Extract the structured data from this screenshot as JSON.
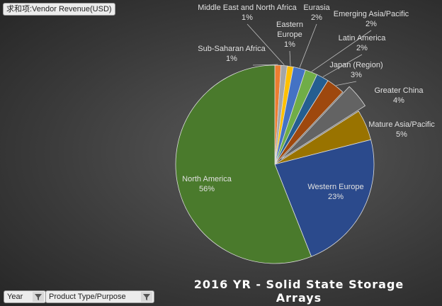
{
  "pivot_fields": {
    "value_field": "求和项:Vendor Revenue(USD)",
    "filters": [
      "Year",
      "Product Type/Purpose"
    ]
  },
  "chart_data": {
    "type": "pie",
    "title": "2016 YR - Solid State Storage Arrays",
    "categories": [
      "Sub-Saharan Africa",
      "Middle East and North Africa",
      "Eastern Europe",
      "Eurasia",
      "Emerging Asia/Pacific",
      "Latin America",
      "Japan (Region)",
      "Greater China",
      "Mature Asia/Pacific",
      "Western Europe",
      "North America"
    ],
    "values": [
      1,
      1,
      1,
      2,
      2,
      2,
      3,
      4,
      5,
      23,
      56
    ],
    "value_labels": [
      "1%",
      "1%",
      "1%",
      "2%",
      "2%",
      "2%",
      "3%",
      "4%",
      "5%",
      "23%",
      "56%"
    ],
    "colors": [
      "#ed7d31",
      "#a5a5a5",
      "#ffc000",
      "#4472c4",
      "#70ad47",
      "#255e91",
      "#9e480e",
      "#636363",
      "#997300",
      "#2b4a8c",
      "#4a7a2c"
    ]
  }
}
